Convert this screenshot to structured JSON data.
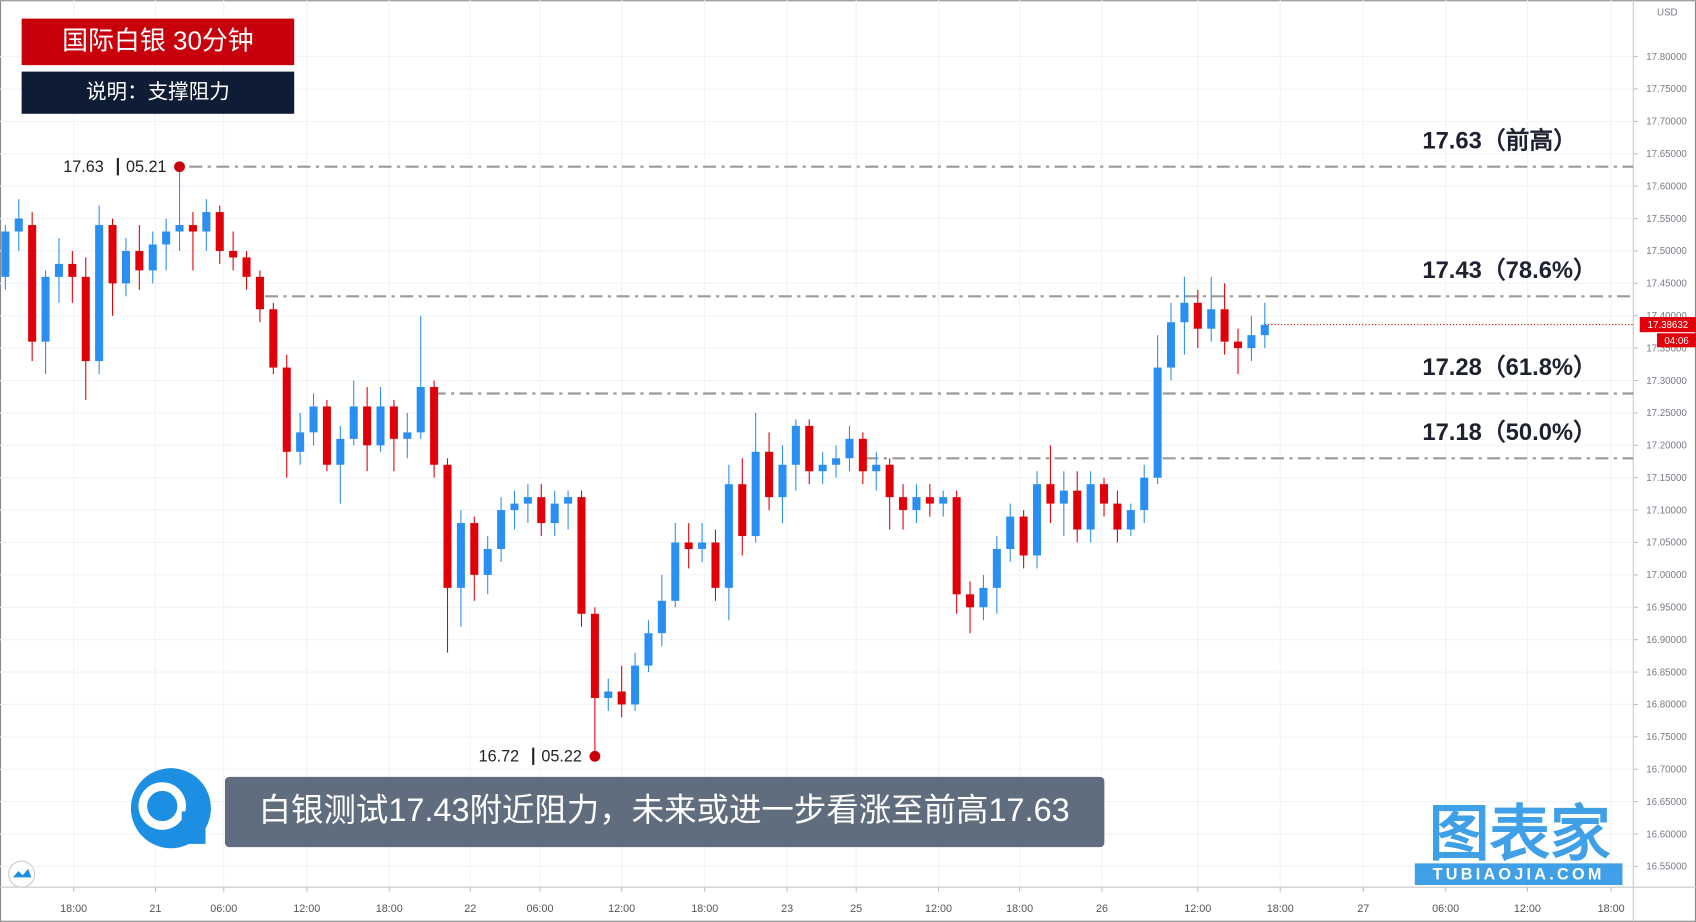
{
  "chart_data": {
    "type": "candlestick",
    "title": "国际白银 30分钟",
    "subtitle": "说明：支撑阻力",
    "annotation": "白银测试17.43附近阻力，未来或进一步看涨至前高17.63",
    "currency": "USD",
    "last_price": 17.38632,
    "countdown": "04:06",
    "watermark": {
      "name": "图表家",
      "url": "TUBIAOJIA.COM"
    },
    "up_color": "#2a8ff0",
    "down_color": "#e0000a",
    "open": [
      17.46,
      17.53,
      17.54,
      17.36,
      17.46,
      17.48,
      17.46,
      17.33,
      17.54,
      17.45,
      17.5,
      17.47,
      17.51,
      17.53,
      17.54,
      17.53,
      17.56,
      17.5,
      17.49,
      17.46,
      17.41,
      17.32,
      17.19,
      17.22,
      17.26,
      17.17,
      17.21,
      17.26,
      17.2,
      17.26,
      17.21,
      17.22,
      17.29,
      17.17,
      16.98,
      17.08,
      17.0,
      17.04,
      17.1,
      17.11,
      17.12,
      17.08,
      17.11,
      17.12,
      16.94,
      16.81,
      16.82,
      16.8,
      16.86,
      16.91,
      16.96,
      17.05,
      17.04,
      17.05,
      16.98,
      17.14,
      17.06,
      17.19,
      17.12,
      17.17,
      17.23,
      17.16,
      17.17,
      17.18,
      17.21,
      17.16,
      17.17,
      17.12,
      17.1,
      17.12,
      17.11,
      17.12,
      16.97,
      16.95,
      16.98,
      17.04,
      17.09,
      17.03,
      17.14,
      17.11,
      17.13,
      17.07,
      17.14,
      17.11,
      17.07,
      17.1,
      17.15,
      17.32,
      17.39,
      17.42,
      17.38,
      17.41,
      17.36,
      17.35,
      17.37
    ],
    "high": [
      17.54,
      17.58,
      17.56,
      17.47,
      17.52,
      17.5,
      17.49,
      17.57,
      17.55,
      17.52,
      17.54,
      17.53,
      17.55,
      17.63,
      17.56,
      17.58,
      17.57,
      17.53,
      17.5,
      17.47,
      17.42,
      17.34,
      17.25,
      17.28,
      17.27,
      17.23,
      17.3,
      17.29,
      17.29,
      17.27,
      17.25,
      17.4,
      17.3,
      17.18,
      17.1,
      17.09,
      17.06,
      17.12,
      17.13,
      17.14,
      17.14,
      17.13,
      17.13,
      17.13,
      16.95,
      16.84,
      16.86,
      16.88,
      16.93,
      17.0,
      17.08,
      17.08,
      17.08,
      17.07,
      17.17,
      17.18,
      17.25,
      17.22,
      17.2,
      17.24,
      17.24,
      17.19,
      17.2,
      17.23,
      17.22,
      17.19,
      17.18,
      17.14,
      17.14,
      17.14,
      17.13,
      17.13,
      16.99,
      17.0,
      17.06,
      17.11,
      17.1,
      17.16,
      17.2,
      17.16,
      17.16,
      17.16,
      17.15,
      17.13,
      17.11,
      17.17,
      17.37,
      17.42,
      17.46,
      17.44,
      17.46,
      17.45,
      17.38,
      17.4,
      17.42
    ],
    "low": [
      17.44,
      17.5,
      17.33,
      17.31,
      17.42,
      17.42,
      17.27,
      17.31,
      17.4,
      17.43,
      17.44,
      17.45,
      17.47,
      17.5,
      17.47,
      17.5,
      17.48,
      17.47,
      17.44,
      17.39,
      17.31,
      17.15,
      17.17,
      17.2,
      17.16,
      17.11,
      17.2,
      17.16,
      17.19,
      17.16,
      17.18,
      17.21,
      17.15,
      16.88,
      16.92,
      16.96,
      16.97,
      17.02,
      17.07,
      17.08,
      17.06,
      17.06,
      17.07,
      16.92,
      16.72,
      16.79,
      16.78,
      16.79,
      16.85,
      16.89,
      16.95,
      17.01,
      17.02,
      16.96,
      16.93,
      17.03,
      17.05,
      17.1,
      17.08,
      17.13,
      17.14,
      17.14,
      17.15,
      17.16,
      17.14,
      17.13,
      17.07,
      17.07,
      17.08,
      17.09,
      17.09,
      16.94,
      16.91,
      16.93,
      16.94,
      17.02,
      17.01,
      17.01,
      17.08,
      17.06,
      17.05,
      17.05,
      17.09,
      17.05,
      17.06,
      17.08,
      17.14,
      17.3,
      17.34,
      17.35,
      17.36,
      17.34,
      17.31,
      17.33,
      17.35
    ],
    "close": [
      17.53,
      17.55,
      17.36,
      17.46,
      17.48,
      17.46,
      17.33,
      17.54,
      17.45,
      17.5,
      17.47,
      17.51,
      17.53,
      17.54,
      17.53,
      17.56,
      17.5,
      17.49,
      17.46,
      17.41,
      17.32,
      17.19,
      17.22,
      17.26,
      17.17,
      17.21,
      17.26,
      17.2,
      17.26,
      17.21,
      17.22,
      17.29,
      17.17,
      16.98,
      17.08,
      17.0,
      17.04,
      17.1,
      17.11,
      17.12,
      17.08,
      17.11,
      17.12,
      16.94,
      16.81,
      16.82,
      16.8,
      16.86,
      16.91,
      16.96,
      17.05,
      17.04,
      17.05,
      16.98,
      17.14,
      17.06,
      17.19,
      17.12,
      17.17,
      17.23,
      17.16,
      17.17,
      17.18,
      17.21,
      17.16,
      17.17,
      17.12,
      17.1,
      17.12,
      17.11,
      17.12,
      16.97,
      16.95,
      16.98,
      17.04,
      17.09,
      17.03,
      17.14,
      17.11,
      17.13,
      17.07,
      17.14,
      17.11,
      17.07,
      17.1,
      17.15,
      17.32,
      17.39,
      17.42,
      17.38,
      17.41,
      17.36,
      17.35,
      17.37,
      17.386
    ],
    "xlim": [
      -0.4,
      121.5
    ],
    "ylim": [
      16.518,
      17.887
    ],
    "xticks": [
      {
        "value": 5.1,
        "label": "18:00"
      },
      {
        "value": 11.2,
        "label": "21"
      },
      {
        "value": 16.3,
        "label": "06:00"
      },
      {
        "value": 22.5,
        "label": "12:00"
      },
      {
        "value": 28.65,
        "label": "18:00"
      },
      {
        "value": 34.7,
        "label": "22"
      },
      {
        "value": 39.9,
        "label": "06:00"
      },
      {
        "value": 46,
        "label": "12:00"
      },
      {
        "value": 52.2,
        "label": "18:00"
      },
      {
        "value": 58.35,
        "label": "23"
      },
      {
        "value": 63.5,
        "label": "25"
      },
      {
        "value": 69.65,
        "label": "12:00"
      },
      {
        "value": 75.7,
        "label": "18:00"
      },
      {
        "value": 81.85,
        "label": "26"
      },
      {
        "value": 89,
        "label": "12:00"
      },
      {
        "value": 95.15,
        "label": "18:00"
      },
      {
        "value": 101.35,
        "label": "27"
      },
      {
        "value": 107.5,
        "label": "06:00"
      },
      {
        "value": 113.6,
        "label": "12:00"
      },
      {
        "value": 119.85,
        "label": "18:00"
      }
    ],
    "yticks": [
      {
        "value": 17.8,
        "label": "17.80000"
      },
      {
        "value": 17.75,
        "label": "17.75000"
      },
      {
        "value": 17.7,
        "label": "17.70000"
      },
      {
        "value": 17.65,
        "label": "17.65000"
      },
      {
        "value": 17.6,
        "label": "17.60000"
      },
      {
        "value": 17.55,
        "label": "17.55000"
      },
      {
        "value": 17.5,
        "label": "17.50000"
      },
      {
        "value": 17.45,
        "label": "17.45000"
      },
      {
        "value": 17.4,
        "label": "17.40000"
      },
      {
        "value": 17.35,
        "label": "17.35000"
      },
      {
        "value": 17.3,
        "label": "17.30000"
      },
      {
        "value": 17.25,
        "label": "17.25000"
      },
      {
        "value": 17.2,
        "label": "17.20000"
      },
      {
        "value": 17.15,
        "label": "17.15000"
      },
      {
        "value": 17.1,
        "label": "17.10000"
      },
      {
        "value": 17.05,
        "label": "17.05000"
      },
      {
        "value": 17,
        "label": "17.00000"
      },
      {
        "value": 16.95,
        "label": "16.95000"
      },
      {
        "value": 16.9,
        "label": "16.90000"
      },
      {
        "value": 16.85,
        "label": "16.85000"
      },
      {
        "value": 16.8,
        "label": "16.80000"
      },
      {
        "value": 16.75,
        "label": "16.75000"
      },
      {
        "value": 16.7,
        "label": "16.70000"
      },
      {
        "value": 16.65,
        "label": "16.65000"
      },
      {
        "value": 16.6,
        "label": "16.60000"
      },
      {
        "value": 16.55,
        "label": "16.55000"
      }
    ],
    "levels": [
      {
        "value": 17.63,
        "label": "17.63（前高）"
      },
      {
        "value": 17.43,
        "label": "17.43（78.6%）"
      },
      {
        "value": 17.28,
        "label": "17.28（61.8%）"
      },
      {
        "value": 17.18,
        "label": "17.18（50.0%）"
      }
    ],
    "extremes": [
      {
        "x": 13,
        "value": 17.63,
        "date": "05.21"
      },
      {
        "x": 44,
        "value": 16.72,
        "date": "05.22"
      }
    ]
  }
}
